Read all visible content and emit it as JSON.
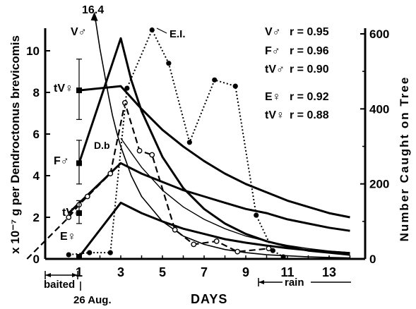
{
  "chart_data": {
    "type": "line",
    "xlabel": "DAYS",
    "ylabel_left": "x 10⁻⁷ g per Dendroctonus brevicomis",
    "ylabel_right": "Number Caught on Tree",
    "x_ticks": [
      1,
      3,
      5,
      7,
      9,
      11,
      13
    ],
    "x_range": [
      -2.5,
      14
    ],
    "y_left_ticks": [
      0,
      2,
      4,
      6,
      8,
      10
    ],
    "y_left_range": [
      0,
      11
    ],
    "y_right_ticks": [
      0,
      200,
      400,
      600
    ],
    "y_right_range": [
      0,
      600
    ],
    "annotations": {
      "baited": "baited",
      "date": "26 Aug.",
      "rain": "rain",
      "peak_label": "16.4"
    },
    "legend": [
      {
        "label": "V♂",
        "r": "r = 0.95"
      },
      {
        "label": "F♂",
        "r": "r = 0.96"
      },
      {
        "label": "tV♂",
        "r": "r = 0.90"
      },
      {
        "label": "E♀",
        "r": "r = 0.92"
      },
      {
        "label": "tV♀",
        "r": "r = 0.88"
      }
    ],
    "curves": [
      {
        "name": "V♂",
        "label": "V♂",
        "x": [
          1.8,
          2,
          2.2,
          2.4,
          2.6,
          2.8,
          3,
          3.5,
          4,
          5,
          6,
          7,
          8,
          9,
          10,
          11,
          12,
          13,
          14
        ],
        "y": [
          11.4,
          10.1,
          9.0,
          7.9,
          6.9,
          6.1,
          5.4,
          4.0,
          3.0,
          1.8,
          1.1,
          0.7,
          0.45,
          0.3,
          0.2,
          0.15,
          0.1,
          0.07,
          0.05
        ]
      },
      {
        "name": "F♂",
        "label": "F♂",
        "x": [
          1,
          3,
          3.5,
          4,
          5,
          6,
          7,
          8,
          9,
          10,
          11,
          12,
          13,
          14
        ],
        "y": [
          4.6,
          10.6,
          8.6,
          7.1,
          4.9,
          3.4,
          2.4,
          1.7,
          1.2,
          0.85,
          0.6,
          0.4,
          0.3,
          0.2
        ]
      },
      {
        "name": "tV♀",
        "label": "tV♀",
        "x": [
          1,
          3,
          4,
          5,
          6,
          7,
          8,
          9,
          10,
          11,
          12,
          13,
          14
        ],
        "y": [
          8.1,
          8.3,
          7.2,
          6.2,
          5.4,
          4.7,
          4.1,
          3.6,
          3.2,
          2.8,
          2.5,
          2.2,
          2.0
        ]
      },
      {
        "name": "tV♂",
        "label": "tV♂",
        "x": [
          0.5,
          3,
          4,
          5,
          6,
          7,
          8,
          9,
          10,
          11,
          12,
          13,
          14
        ],
        "y": [
          2.2,
          4.6,
          4.1,
          3.7,
          3.3,
          3.0,
          2.7,
          2.4,
          2.2,
          1.9,
          1.7,
          1.5,
          1.35
        ]
      },
      {
        "name": "E♀",
        "label": "E♀",
        "x": [
          1,
          3,
          4,
          5,
          6,
          7,
          8,
          9,
          10,
          11,
          12,
          13,
          14
        ],
        "y": [
          0.1,
          2.7,
          2.2,
          1.8,
          1.45,
          1.2,
          0.95,
          0.78,
          0.64,
          0.52,
          0.42,
          0.35,
          0.28
        ]
      }
    ],
    "series_Db": {
      "label": "D.b",
      "x": [
        -1.5,
        0.5,
        1,
        1.4,
        2.5,
        3.2,
        3.9,
        4.5,
        5.6,
        6.5,
        7.6,
        8.6,
        10.1
      ],
      "y": [
        0,
        2.0,
        2.6,
        3.0,
        4.1,
        7.5,
        5.2,
        5.0,
        1.4,
        0.7,
        0.85,
        0.35,
        0.5
      ]
    },
    "series_EI": {
      "label": "E.I.",
      "x": [
        0.5,
        1.5,
        2.5,
        3.3,
        4.5,
        5.3,
        6.3,
        7.5,
        8.5,
        9.5,
        10.3,
        10.8
      ],
      "y": [
        0.2,
        0.3,
        0.3,
        8.2,
        11.0,
        9.4,
        5.6,
        8.6,
        8.3,
        2.1,
        0.4,
        0.1
      ]
    },
    "markers_solid": [
      {
        "label": "tV♀",
        "x": 1,
        "y": 8.1,
        "err_low": 6.7,
        "err_high": 9.6
      },
      {
        "label": "F♂",
        "x": 1,
        "y": 4.6,
        "err_low": 3.6,
        "err_high": 5.7
      },
      {
        "label": "tV♂",
        "x": 1,
        "y": 2.2,
        "err_low": 1.7,
        "err_high": 2.8
      },
      {
        "label": "E♀",
        "x": 1,
        "y": 0.1
      }
    ]
  }
}
